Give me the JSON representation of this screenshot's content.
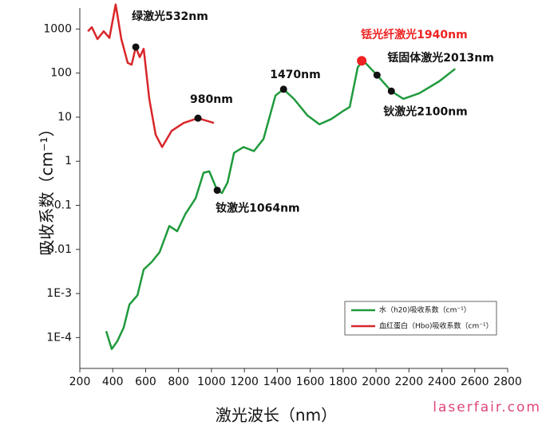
{
  "watermark": "laserfair.com",
  "chart_data": {
    "type": "line",
    "xlabel": "激光波长（nm）",
    "ylabel": "吸收系数（cm⁻¹）",
    "xlim": [
      200,
      2800
    ],
    "xticks": [
      200,
      400,
      600,
      800,
      1000,
      1200,
      1400,
      1600,
      1800,
      2000,
      2200,
      2400,
      2600,
      2800
    ],
    "ylim": [
      2e-05,
      3000
    ],
    "yticks": [
      1000,
      100,
      10,
      1,
      0.1,
      0.01,
      {
        "value": 0.001,
        "label": "1E-3"
      },
      {
        "value": 0.0001,
        "label": "1E-4"
      }
    ],
    "log_y": true,
    "legend": "lower right",
    "series": [
      {
        "name": "水（h20)吸收系数（cm⁻¹）",
        "color": "#1f9a3c",
        "x": [
          360,
          394,
          428,
          467,
          501,
          550,
          588,
          637,
          685,
          744,
          792,
          841,
          904,
          952,
          987,
          1035,
          1064,
          1098,
          1137,
          1195,
          1258,
          1316,
          1389,
          1438,
          1501,
          1583,
          1656,
          1729,
          1802,
          1840,
          1889,
          1923,
          2006,
          2093,
          2166,
          2263,
          2384,
          2481
        ],
        "values": [
          0.00014,
          5.5e-05,
          8.3e-05,
          0.00017,
          0.00056,
          0.00091,
          0.0035,
          0.0052,
          0.0087,
          0.034,
          0.026,
          0.063,
          0.145,
          0.55,
          0.59,
          0.22,
          0.19,
          0.33,
          1.55,
          2.1,
          1.7,
          3.2,
          31,
          43,
          26,
          11,
          6.9,
          9.1,
          14,
          17,
          137,
          190,
          90,
          39,
          26,
          35,
          65,
          125
        ]
      },
      {
        "name": "血红蛋白（Hbo)吸收系数（cm⁻¹）",
        "color": "#d9262a",
        "x": [
          249,
          273,
          307,
          345,
          380,
          418,
          452,
          491,
          515,
          540,
          564,
          588,
          622,
          661,
          700,
          758,
          831,
          918,
          1015
        ],
        "values": [
          890,
          1100,
          590,
          890,
          630,
          3600,
          590,
          170,
          155,
          390,
          230,
          355,
          26,
          4,
          2.1,
          4.9,
          7.4,
          9.5,
          7.4
        ]
      }
    ],
    "annotations": [
      {
        "text": "绿激光532nm",
        "x": 540,
        "y": 390,
        "color": "#111111"
      },
      {
        "text": "980nm",
        "x": 918,
        "y": 9.5,
        "color": "#111111"
      },
      {
        "text": "1470nm",
        "x": 1438,
        "y": 43,
        "color": "#111111"
      },
      {
        "text": "钕激光1064nm",
        "x": 1035,
        "y": 0.22,
        "color": "#111111"
      },
      {
        "text": "铥光纤激光1940nm",
        "x": 1913,
        "y": 190,
        "color": "#ee2222"
      },
      {
        "text": "铥固体激光2013nm",
        "x": 2006,
        "y": 90,
        "color": "#111111"
      },
      {
        "text": "钬激光2100nm",
        "x": 2093,
        "y": 39,
        "color": "#111111"
      }
    ]
  }
}
